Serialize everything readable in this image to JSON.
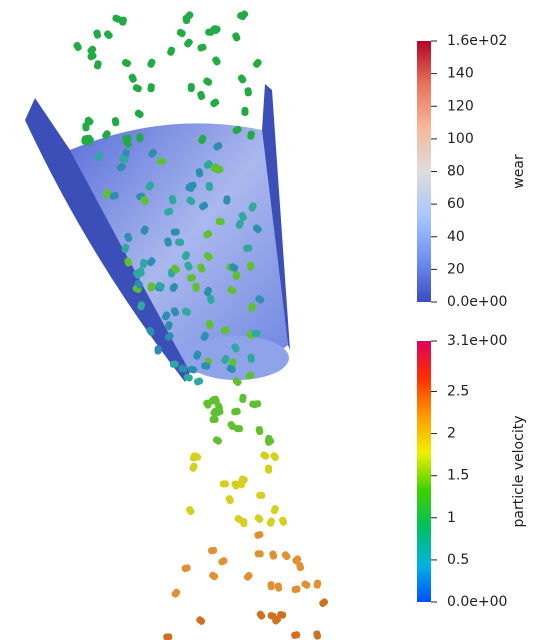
{
  "colorbars": [
    {
      "title": "wear",
      "range": [
        0,
        160
      ],
      "ticks": [
        {
          "value": 160,
          "label": "1.6e+02"
        },
        140,
        120,
        100,
        80,
        60,
        40,
        20,
        {
          "value": 0,
          "label": "0.0e+00"
        }
      ],
      "colors": [
        "#3b4cc0",
        "#6f92f3",
        "#aac7fd",
        "#dddddd",
        "#f7b89c",
        "#e7745b",
        "#b40426"
      ]
    },
    {
      "title": "particle velocity",
      "range": [
        0,
        3.1
      ],
      "ticks": [
        {
          "value": 3.1,
          "label": "3.1e+00"
        },
        2.5,
        2,
        1.5,
        1,
        0.5,
        {
          "value": 0,
          "label": "0.0e+00"
        }
      ],
      "colors": [
        "#0050ff",
        "#00b4e0",
        "#00c060",
        "#40d000",
        "#f0f000",
        "#ff9a00",
        "#ff3000",
        "#e0005a"
      ]
    }
  ]
}
